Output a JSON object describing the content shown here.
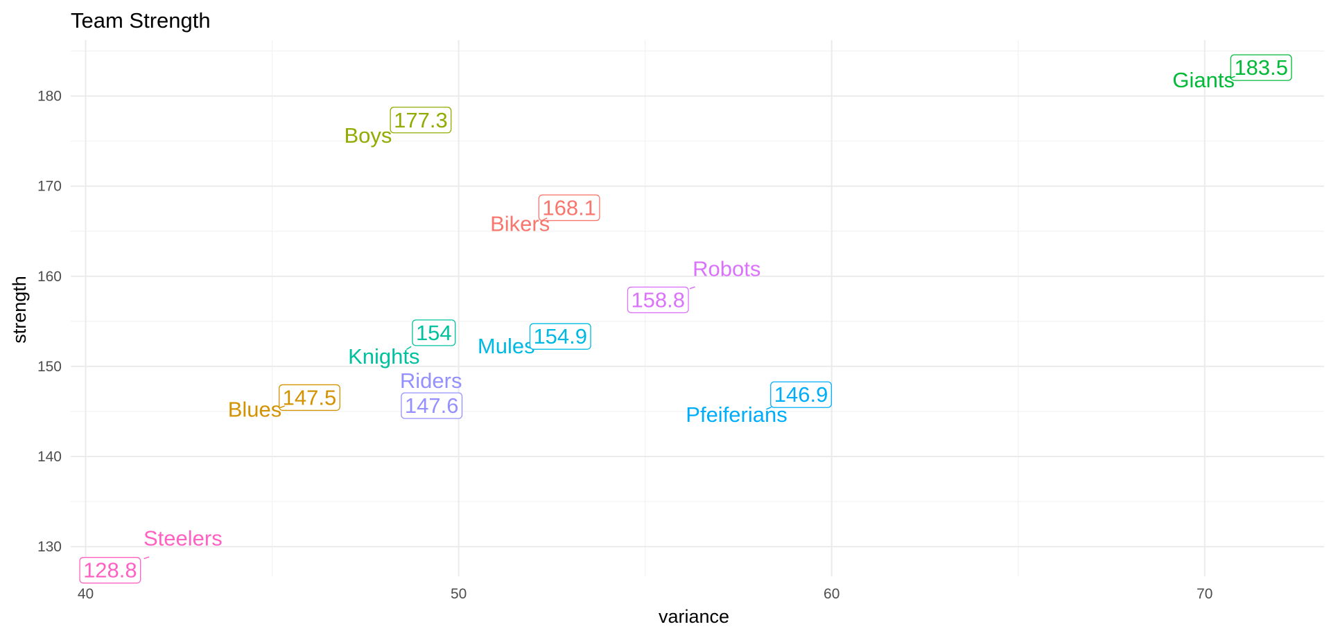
{
  "chart_data": {
    "type": "scatter",
    "title": "Team Strength",
    "xlabel": "variance",
    "ylabel": "strength",
    "xlim": [
      39.6,
      73.2
    ],
    "ylim": [
      126.7,
      186.2
    ],
    "x_ticks": [
      40,
      50,
      60,
      70
    ],
    "y_ticks": [
      130,
      140,
      150,
      160,
      170,
      180
    ],
    "x_tick_labels": [
      "40",
      "50",
      "60",
      "70"
    ],
    "y_tick_labels": [
      "130",
      "140",
      "150",
      "160",
      "170",
      "180"
    ],
    "grid": true,
    "legend": "none",
    "points": [
      {
        "team": "Bikers",
        "x": 52.5,
        "y": 168.1,
        "label": "168.1",
        "color": "#F8766D"
      },
      {
        "team": "Blues",
        "x": 45.5,
        "y": 147.5,
        "label": "147.5",
        "color": "#D39200"
      },
      {
        "team": "Boys",
        "x": 48.5,
        "y": 177.3,
        "label": "177.3",
        "color": "#93AA00"
      },
      {
        "team": "Giants",
        "x": 70.9,
        "y": 183.5,
        "label": "183.5",
        "color": "#00BA38"
      },
      {
        "team": "Knights",
        "x": 49.0,
        "y": 154,
        "label": "154",
        "color": "#00C19F"
      },
      {
        "team": "Mules",
        "x": 52.0,
        "y": 154.9,
        "label": "154.9",
        "color": "#00B9E3"
      },
      {
        "team": "Pfeiferians",
        "x": 58.9,
        "y": 146.9,
        "label": "146.9",
        "color": "#00ADFA"
      },
      {
        "team": "Riders",
        "x": 49.5,
        "y": 147.6,
        "label": "147.6",
        "color": "#9590FF"
      },
      {
        "team": "Robots",
        "x": 56.2,
        "y": 158.8,
        "label": "158.8",
        "color": "#DB72FB"
      },
      {
        "team": "Steelers",
        "x": 41.4,
        "y": 128.8,
        "label": "128.8",
        "color": "#FF61C3"
      }
    ]
  }
}
